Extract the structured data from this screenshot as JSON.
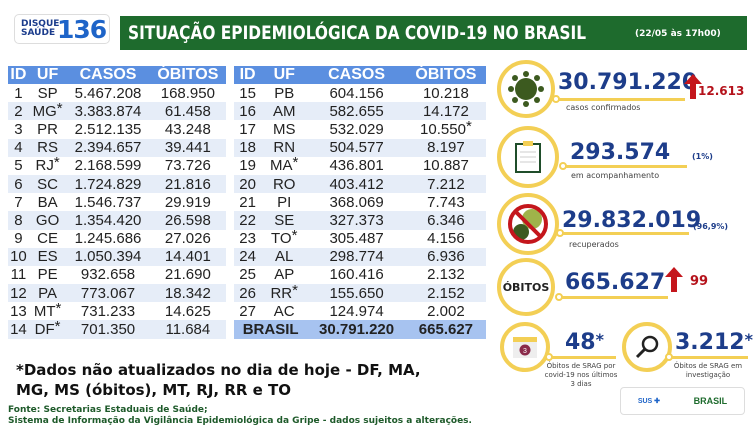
{
  "logo": {
    "line1": "DISQUE",
    "line2": "SAÚDE",
    "number": "136"
  },
  "header": {
    "title": "SITUAÇÃO EPIDEMIOLÓGICA DA COVID-19 NO BRASIL",
    "date": "(22/05 às 17h00)"
  },
  "table": {
    "columns": [
      "ID",
      "UF",
      "CASOS",
      "ÓBITOS"
    ],
    "left": [
      [
        "1",
        "SP",
        "5.467.208",
        "168.950",
        ""
      ],
      [
        "2",
        "MG",
        "3.383.874",
        "61.458",
        "uf"
      ],
      [
        "3",
        "PR",
        "2.512.135",
        "43.248",
        ""
      ],
      [
        "4",
        "RS",
        "2.394.657",
        "39.441",
        ""
      ],
      [
        "5",
        "RJ",
        "2.168.599",
        "73.726",
        "uf"
      ],
      [
        "6",
        "SC",
        "1.724.829",
        "21.816",
        ""
      ],
      [
        "7",
        "BA",
        "1.546.737",
        "29.919",
        ""
      ],
      [
        "8",
        "GO",
        "1.354.420",
        "26.598",
        ""
      ],
      [
        "9",
        "CE",
        "1.245.686",
        "27.026",
        ""
      ],
      [
        "10",
        "ES",
        "1.050.394",
        "14.401",
        ""
      ],
      [
        "11",
        "PE",
        "932.658",
        "21.690",
        ""
      ],
      [
        "12",
        "PA",
        "773.067",
        "18.342",
        ""
      ],
      [
        "13",
        "MT",
        "731.233",
        "14.625",
        "uf"
      ],
      [
        "14",
        "DF",
        "701.350",
        "11.684",
        "uf"
      ]
    ],
    "right": [
      [
        "15",
        "PB",
        "604.156",
        "10.218",
        ""
      ],
      [
        "16",
        "AM",
        "582.655",
        "14.172",
        ""
      ],
      [
        "17",
        "MS",
        "532.029",
        "10.550",
        "ob"
      ],
      [
        "18",
        "RN",
        "504.577",
        "8.197",
        ""
      ],
      [
        "19",
        "MA",
        "436.801",
        "10.887",
        "uf"
      ],
      [
        "20",
        "RO",
        "403.412",
        "7.212",
        ""
      ],
      [
        "21",
        "PI",
        "368.069",
        "7.743",
        ""
      ],
      [
        "22",
        "SE",
        "327.373",
        "6.346",
        ""
      ],
      [
        "23",
        "TO",
        "305.487",
        "4.156",
        "uf"
      ],
      [
        "24",
        "AL",
        "298.774",
        "6.936",
        ""
      ],
      [
        "25",
        "AP",
        "160.416",
        "2.132",
        ""
      ],
      [
        "26",
        "RR",
        "155.650",
        "2.152",
        "uf"
      ],
      [
        "27",
        "AC",
        "124.974",
        "2.002",
        ""
      ]
    ],
    "total": {
      "label": "BRASIL",
      "casos": "30.791.220",
      "obitos": "665.627"
    },
    "star": "*"
  },
  "note": "*Dados não atualizados no dia de hoje - DF, MA, MG, MS (óbitos), MT, RJ, RR e TO",
  "source": {
    "line1": "Fonte: Secretarias Estaduais de Saúde;",
    "line2": "Sistema de Informação da Vigilância Epidemiológica da Gripe - dados sujeitos a alterações."
  },
  "stats": {
    "confirmed": {
      "value": "30.791.220",
      "label": "casos confirmados",
      "delta": "12.613"
    },
    "monitoring": {
      "value": "293.574",
      "label": "em acompanhamento",
      "pct": "(1%)"
    },
    "recovered": {
      "value": "29.832.019",
      "label": "recuperados",
      "pct": "(96,9%)"
    },
    "deaths": {
      "badge": "ÓBITOS",
      "value": "665.627",
      "delta": "99"
    },
    "srag3": {
      "value": "48",
      "star": "*",
      "label": "Óbitos de SRAG por covid-19 nos últimos 3 dias",
      "cal": "3"
    },
    "sragInv": {
      "value": "3.212",
      "star": "*",
      "label": "Óbitos de SRAG em investigação"
    }
  },
  "gov": {
    "sus": "SUS",
    "brasil": "BRASIL"
  },
  "colors": {
    "green": "#1e6b2d",
    "blue": "#5b8fe0",
    "navy": "#1d3d8a",
    "red": "#c4161c",
    "yellow": "#f3cf55"
  }
}
